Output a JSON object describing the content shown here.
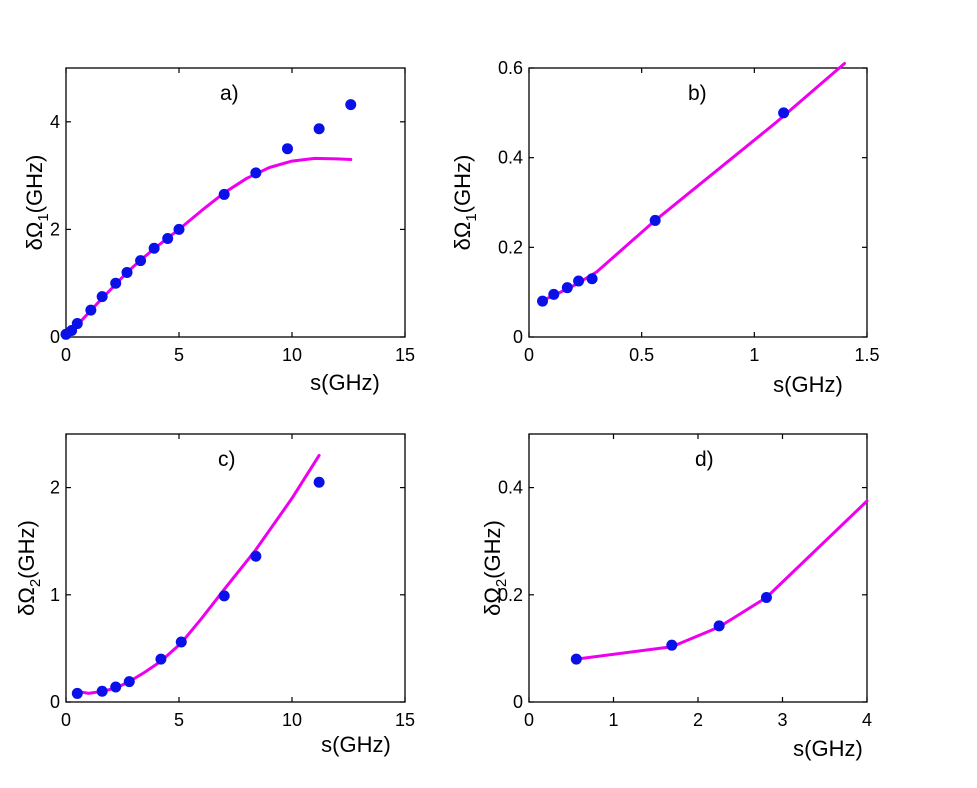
{
  "colors": {
    "points": "#0a10e8",
    "line": "#ee00ee",
    "axes": "#000000"
  },
  "chart_data": [
    {
      "id": "a",
      "type": "scatter+line",
      "title": "a)",
      "xlabel": "s(GHz)",
      "ylabel": {
        "prefix": "δΩ",
        "sub": "1",
        "suffix": "(GHz)"
      },
      "xlim": [
        0,
        15
      ],
      "ylim": [
        0,
        5
      ],
      "xticks": [
        0,
        5,
        10,
        15
      ],
      "xtick_labels": [
        "0",
        "5",
        "10",
        "15"
      ],
      "yticks": [
        0,
        2,
        4
      ],
      "ytick_labels": [
        "0",
        "2",
        "4"
      ],
      "points": {
        "x": [
          0,
          0.25,
          0.5,
          1.1,
          1.6,
          2.2,
          2.7,
          3.3,
          3.9,
          4.5,
          5.0,
          7.0,
          8.4,
          9.8,
          11.2,
          12.6
        ],
        "y": [
          0.05,
          0.12,
          0.25,
          0.5,
          0.75,
          1.0,
          1.2,
          1.42,
          1.65,
          1.83,
          2.0,
          2.65,
          3.05,
          3.5,
          3.87,
          4.32
        ]
      },
      "line": {
        "x": [
          0,
          0.5,
          1,
          1.6,
          2.2,
          2.7,
          3.3,
          3.9,
          4.5,
          5.0,
          6.0,
          7.0,
          8.0,
          9.0,
          10.0,
          11.0,
          12.0,
          12.6
        ],
        "y": [
          0.05,
          0.22,
          0.45,
          0.72,
          0.98,
          1.2,
          1.43,
          1.64,
          1.84,
          2.0,
          2.35,
          2.68,
          2.95,
          3.15,
          3.27,
          3.32,
          3.31,
          3.3
        ]
      }
    },
    {
      "id": "b",
      "type": "scatter+line",
      "title": "b)",
      "xlabel": "s(GHz)",
      "ylabel": {
        "prefix": "δΩ",
        "sub": "1",
        "suffix": "(GHz)"
      },
      "xlim": [
        0,
        1.5
      ],
      "ylim": [
        0,
        0.6
      ],
      "xticks": [
        0,
        0.5,
        1,
        1.5
      ],
      "xtick_labels": [
        "0",
        "0.5",
        "1",
        "1.5"
      ],
      "yticks": [
        0,
        0.2,
        0.4,
        0.6
      ],
      "ytick_labels": [
        "0",
        "0.2",
        "0.4",
        "0.6"
      ],
      "points": {
        "x": [
          0.06,
          0.11,
          0.17,
          0.22,
          0.28,
          0.56,
          1.13
        ],
        "y": [
          0.08,
          0.095,
          0.11,
          0.125,
          0.13,
          0.26,
          0.5
        ]
      },
      "line": {
        "x": [
          0.05,
          0.1,
          0.2,
          0.3,
          0.56,
          1.1,
          1.4
        ],
        "y": [
          0.08,
          0.09,
          0.115,
          0.145,
          0.26,
          0.48,
          0.61
        ]
      }
    },
    {
      "id": "c",
      "type": "scatter+line",
      "title": "c)",
      "xlabel": "s(GHz)",
      "ylabel": {
        "prefix": "δΩ",
        "sub": "2",
        "suffix": "(GHz)"
      },
      "xlim": [
        0,
        15
      ],
      "ylim": [
        0,
        2.5
      ],
      "xticks": [
        0,
        5,
        10,
        15
      ],
      "xtick_labels": [
        "0",
        "5",
        "10",
        "15"
      ],
      "yticks": [
        0,
        1,
        2
      ],
      "ytick_labels": [
        "0",
        "1",
        "2"
      ],
      "points": {
        "x": [
          0.5,
          1.6,
          2.2,
          2.8,
          4.2,
          5.1,
          7.0,
          8.4,
          11.2
        ],
        "y": [
          0.08,
          0.1,
          0.14,
          0.19,
          0.4,
          0.56,
          0.99,
          1.36,
          2.05
        ]
      },
      "line": {
        "x": [
          0.5,
          1.0,
          1.6,
          2.2,
          2.8,
          3.5,
          4.2,
          5.1,
          6.0,
          7.0,
          8.4,
          10.0,
          11.2
        ],
        "y": [
          0.1,
          0.08,
          0.1,
          0.13,
          0.19,
          0.28,
          0.38,
          0.55,
          0.78,
          1.05,
          1.42,
          1.9,
          2.3
        ]
      }
    },
    {
      "id": "d",
      "type": "scatter+line",
      "title": "d)",
      "xlabel": "s(GHz)",
      "ylabel": {
        "prefix": "δΩ",
        "sub": "2",
        "suffix": "(GHz)"
      },
      "xlim": [
        0,
        4
      ],
      "ylim": [
        0,
        0.5
      ],
      "xticks": [
        0,
        1,
        2,
        3,
        4
      ],
      "xtick_labels": [
        "0",
        "1",
        "2",
        "3",
        "4"
      ],
      "yticks": [
        0,
        0.2,
        0.4
      ],
      "ytick_labels": [
        "0",
        "0.2",
        "0.4"
      ],
      "points": {
        "x": [
          0.56,
          1.69,
          2.25,
          2.81
        ],
        "y": [
          0.08,
          0.106,
          0.142,
          0.195
        ]
      },
      "line": {
        "x": [
          0.56,
          1.69,
          2.25,
          2.81,
          4.0
        ],
        "y": [
          0.08,
          0.103,
          0.14,
          0.195,
          0.375
        ]
      }
    }
  ]
}
